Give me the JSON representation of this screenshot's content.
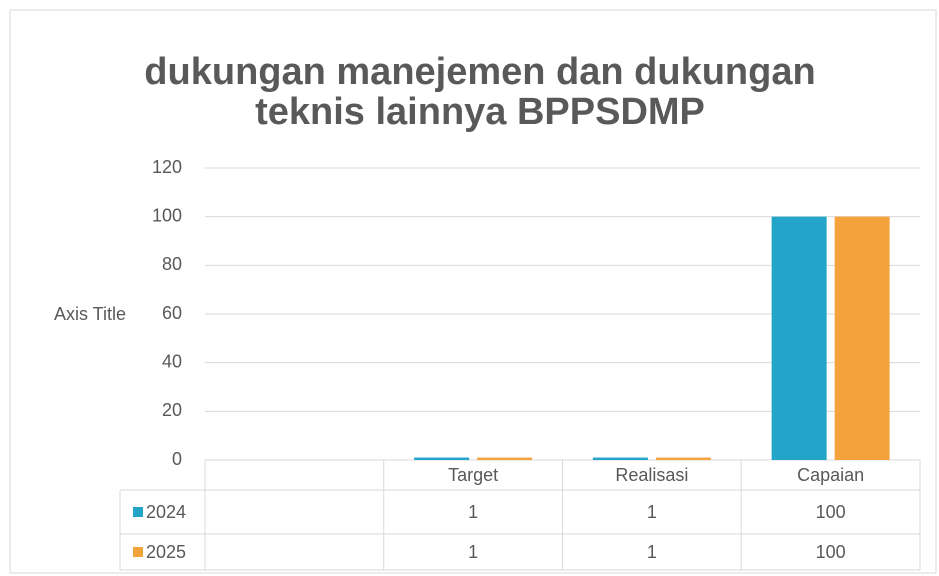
{
  "chart_data": {
    "type": "bar",
    "title_lines": [
      "dukungan manejemen dan dukungan",
      "teknis lainnya BPPSDMP"
    ],
    "y_axis_title": "Axis Title",
    "categories": [
      null,
      "Target",
      "Realisasi",
      "Capaian"
    ],
    "series": [
      {
        "name": "2024",
        "color": "#23a5c9",
        "values": [
          null,
          1,
          1,
          100
        ]
      },
      {
        "name": "2025",
        "color": "#f4a23c",
        "values": [
          null,
          1,
          1,
          100
        ]
      }
    ],
    "ylim": [
      0,
      120
    ],
    "yticks": [
      0,
      20,
      40,
      60,
      80,
      100,
      120
    ],
    "grid": true,
    "data_table": true
  }
}
